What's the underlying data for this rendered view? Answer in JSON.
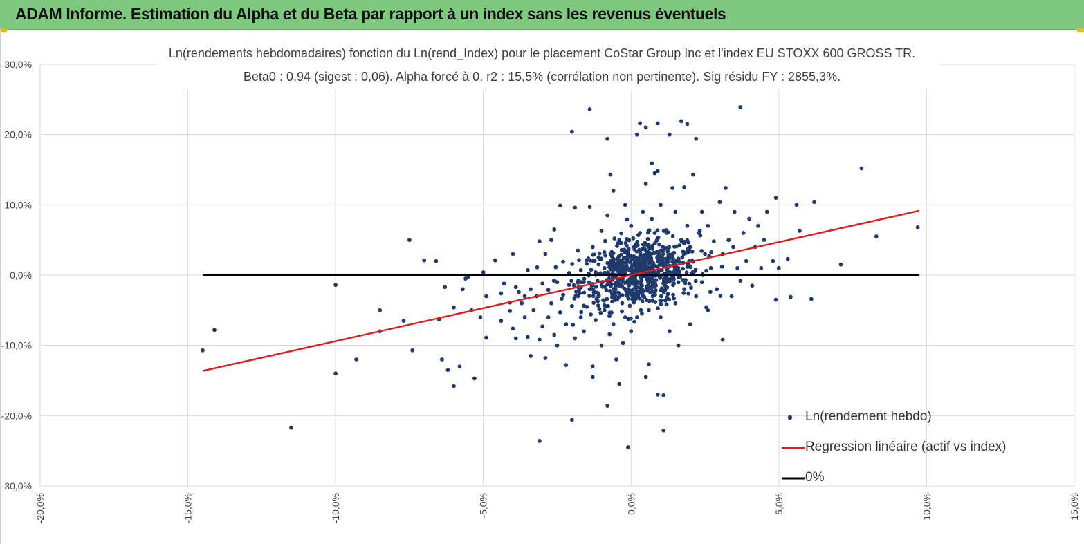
{
  "header": {
    "title": "ADAM Informe. Estimation du Alpha et du Beta par rapport à un index sans les revenus éventuels"
  },
  "colors": {
    "banner": "#7fc97f",
    "points": "#1f3a6b",
    "regression": "#e31a1c",
    "zero_line": "#000000",
    "grid": "#d9d9d9"
  },
  "chart_data": {
    "type": "scatter",
    "title_line1": "Ln(rendements hebdomadaires) fonction du Ln(rend_Index) pour le placement CoStar Group Inc et l'index EU STOXX 600 GROSS TR.",
    "title_line2": "Beta0 : 0,94 (sigest : 0,06).  Alpha forcé à 0. r2 : 15,5% (corrélation non pertinente). Sig résidu FY : 2855,3%.",
    "xlim": [
      -0.2,
      0.15
    ],
    "ylim": [
      -0.3,
      0.3
    ],
    "x_ticks": [
      "-20,0%",
      "-15,0%",
      "-10,0%",
      "-5,0%",
      "0,0%",
      "5,0%",
      "10,0%",
      "15,0%"
    ],
    "y_ticks": [
      "30,0%",
      "20,0%",
      "10,0%",
      "0,0%",
      "-10,0%",
      "-20,0%",
      "-30,0%"
    ],
    "grid": true,
    "legend_placement": "bottom-right",
    "legend": [
      {
        "label": "Ln(rendement hebdo)",
        "kind": "marker"
      },
      {
        "label": "Regression linéaire (actif vs index)",
        "kind": "line"
      },
      {
        "label": "0%",
        "kind": "line"
      }
    ],
    "series": [
      {
        "name": "Ln(rendement hebdo)",
        "points": [
          [
            -0.145,
            -0.107
          ],
          [
            -0.141,
            -0.078
          ],
          [
            -0.115,
            -0.217
          ],
          [
            -0.1,
            -0.014
          ],
          [
            -0.1,
            -0.14
          ],
          [
            -0.093,
            -0.12
          ],
          [
            -0.085,
            -0.05
          ],
          [
            -0.085,
            -0.08
          ],
          [
            -0.075,
            0.05
          ],
          [
            -0.077,
            -0.065
          ],
          [
            -0.074,
            -0.107
          ],
          [
            -0.07,
            0.021
          ],
          [
            -0.066,
            0.02
          ],
          [
            -0.065,
            -0.063
          ],
          [
            -0.064,
            -0.12
          ],
          [
            -0.063,
            -0.017
          ],
          [
            -0.062,
            -0.135
          ],
          [
            -0.06,
            -0.158
          ],
          [
            -0.06,
            -0.046
          ],
          [
            -0.058,
            -0.13
          ],
          [
            -0.057,
            -0.02
          ],
          [
            -0.056,
            -0.005
          ],
          [
            -0.055,
            -0.002
          ],
          [
            -0.054,
            -0.05
          ],
          [
            -0.053,
            -0.147
          ],
          [
            -0.051,
            -0.06
          ],
          [
            -0.05,
            0.004
          ],
          [
            -0.049,
            -0.03
          ],
          [
            -0.049,
            -0.089
          ],
          [
            -0.046,
            0.021
          ],
          [
            -0.044,
            -0.026
          ],
          [
            -0.044,
            -0.065
          ],
          [
            -0.043,
            -0.012
          ],
          [
            -0.041,
            -0.039
          ],
          [
            -0.041,
            -0.051
          ],
          [
            -0.04,
            -0.076
          ],
          [
            -0.04,
            0.03
          ],
          [
            -0.039,
            -0.09
          ],
          [
            -0.039,
            -0.017
          ],
          [
            -0.038,
            -0.024
          ],
          [
            -0.037,
            -0.04
          ],
          [
            -0.036,
            -0.03
          ],
          [
            -0.036,
            -0.06
          ],
          [
            -0.035,
            -0.088
          ],
          [
            -0.035,
            0.007
          ],
          [
            -0.034,
            -0.02
          ],
          [
            -0.034,
            -0.115
          ],
          [
            -0.033,
            -0.05
          ],
          [
            -0.032,
            -0.03
          ],
          [
            -0.031,
            -0.092
          ],
          [
            -0.031,
            -0.236
          ],
          [
            -0.031,
            0.048
          ],
          [
            -0.03,
            -0.012
          ],
          [
            -0.03,
            -0.073
          ],
          [
            -0.029,
            0.03
          ],
          [
            -0.029,
            -0.118
          ],
          [
            -0.028,
            -0.06
          ],
          [
            -0.028,
            -0.021
          ],
          [
            -0.027,
            0.05
          ],
          [
            -0.027,
            -0.04
          ],
          [
            -0.026,
            -0.085
          ],
          [
            -0.026,
            0.065
          ],
          [
            -0.025,
            -0.01
          ],
          [
            -0.025,
            -0.1
          ],
          [
            -0.024,
            -0.053
          ],
          [
            -0.024,
            0.099
          ],
          [
            -0.023,
            0.019
          ],
          [
            -0.023,
            -0.028
          ],
          [
            -0.022,
            -0.128
          ],
          [
            -0.022,
            -0.07
          ],
          [
            -0.021,
            -0.014
          ],
          [
            -0.021,
            0.003
          ],
          [
            -0.02,
            -0.044
          ],
          [
            -0.02,
            -0.206
          ],
          [
            -0.02,
            0.204
          ],
          [
            -0.019,
            0.096
          ],
          [
            -0.019,
            -0.09
          ],
          [
            -0.018,
            -0.03
          ],
          [
            -0.018,
            0.035
          ],
          [
            -0.017,
            -0.06
          ],
          [
            -0.017,
            0.007
          ],
          [
            -0.016,
            -0.01
          ],
          [
            -0.016,
            -0.08
          ],
          [
            -0.015,
            0.016
          ],
          [
            -0.015,
            -0.045
          ],
          [
            -0.014,
            0.236
          ],
          [
            -0.014,
            0.097
          ],
          [
            -0.014,
            -0.02
          ],
          [
            -0.013,
            -0.13
          ],
          [
            -0.013,
            0.04
          ],
          [
            -0.013,
            -0.145
          ],
          [
            -0.012,
            -0.064
          ],
          [
            -0.012,
            0.004
          ],
          [
            -0.011,
            0.025
          ],
          [
            -0.011,
            -0.03
          ],
          [
            -0.01,
            0.063
          ],
          [
            -0.01,
            -0.1
          ],
          [
            -0.01,
            -0.014
          ],
          [
            -0.009,
            0.01
          ],
          [
            -0.009,
            -0.05
          ],
          [
            -0.008,
            -0.186
          ],
          [
            -0.008,
            0.085
          ],
          [
            -0.008,
            0.194
          ],
          [
            -0.007,
            -0.008
          ],
          [
            -0.007,
            0.143
          ],
          [
            -0.007,
            0.03
          ],
          [
            -0.006,
            -0.03
          ],
          [
            -0.006,
            0.12
          ],
          [
            -0.006,
            -0.07
          ],
          [
            -0.005,
            0.008
          ],
          [
            -0.005,
            -0.12
          ],
          [
            -0.004,
            0.05
          ],
          [
            -0.004,
            -0.015
          ],
          [
            -0.004,
            -0.155
          ],
          [
            -0.003,
            0.02
          ],
          [
            -0.003,
            -0.04
          ],
          [
            -0.002,
            0.1
          ],
          [
            -0.002,
            -0.06
          ],
          [
            -0.002,
            0.002
          ],
          [
            -0.001,
            -0.245
          ],
          [
            -0.001,
            0.03
          ],
          [
            -0.001,
            -0.02
          ],
          [
            0.0,
            0.01
          ],
          [
            0.0,
            -0.08
          ],
          [
            0.0,
            0.07
          ],
          [
            0.001,
            -0.005
          ],
          [
            0.001,
            0.04
          ],
          [
            0.001,
            -0.035
          ],
          [
            0.002,
            0.2
          ],
          [
            0.002,
            0.015
          ],
          [
            0.002,
            -0.06
          ],
          [
            0.003,
            0.06
          ],
          [
            0.003,
            -0.01
          ],
          [
            0.003,
            0.216
          ],
          [
            0.004,
            0.09
          ],
          [
            0.004,
            -0.03
          ],
          [
            0.004,
            0.02
          ],
          [
            0.005,
            -0.145
          ],
          [
            0.005,
            0.21
          ],
          [
            0.005,
            0.13
          ],
          [
            0.006,
            -0.127
          ],
          [
            0.006,
            0.04
          ],
          [
            0.006,
            -0.05
          ],
          [
            0.007,
            0.159
          ],
          [
            0.007,
            0.005
          ],
          [
            0.007,
            0.08
          ],
          [
            0.008,
            -0.025
          ],
          [
            0.008,
            0.145
          ],
          [
            0.008,
            0.06
          ],
          [
            0.009,
            -0.17
          ],
          [
            0.009,
            0.216
          ],
          [
            0.009,
            0.148
          ],
          [
            0.01,
            0.02
          ],
          [
            0.01,
            -0.06
          ],
          [
            0.01,
            0.1
          ],
          [
            0.011,
            -0.171
          ],
          [
            0.011,
            0.035
          ],
          [
            0.011,
            -0.221
          ],
          [
            0.012,
            -0.01
          ],
          [
            0.012,
            0.06
          ],
          [
            0.013,
            -0.08
          ],
          [
            0.013,
            0.2
          ],
          [
            0.014,
            0.03
          ],
          [
            0.014,
            0.124
          ],
          [
            0.015,
            -0.04
          ],
          [
            0.015,
            0.09
          ],
          [
            0.016,
            0.01
          ],
          [
            0.016,
            -0.1
          ],
          [
            0.017,
            0.05
          ],
          [
            0.017,
            0.219
          ],
          [
            0.018,
            -0.02
          ],
          [
            0.018,
            0.125
          ],
          [
            0.019,
            0.07
          ],
          [
            0.019,
            0.215
          ],
          [
            0.02,
            -0.07
          ],
          [
            0.02,
            0.04
          ],
          [
            0.021,
            0.143
          ],
          [
            0.021,
            0.005
          ],
          [
            0.022,
            0.194
          ],
          [
            0.022,
            -0.03
          ],
          [
            0.023,
            0.06
          ],
          [
            0.024,
            -0.01
          ],
          [
            0.024,
            0.09
          ],
          [
            0.025,
            0.03
          ],
          [
            0.026,
            -0.05
          ],
          [
            0.026,
            0.07
          ],
          [
            0.027,
            0.01
          ],
          [
            0.028,
            0.048
          ],
          [
            0.029,
            -0.02
          ],
          [
            0.03,
            0.104
          ],
          [
            0.031,
            -0.092
          ],
          [
            0.031,
            0.03
          ],
          [
            0.032,
            0.124
          ],
          [
            0.033,
            0.05
          ],
          [
            0.034,
            -0.03
          ],
          [
            0.035,
            0.09
          ],
          [
            0.036,
            0.01
          ],
          [
            0.037,
            0.239
          ],
          [
            0.037,
            -0.008
          ],
          [
            0.038,
            0.06
          ],
          [
            0.039,
            0.02
          ],
          [
            0.04,
            0.08
          ],
          [
            0.041,
            -0.015
          ],
          [
            0.042,
            0.04
          ],
          [
            0.043,
            0.07
          ],
          [
            0.044,
            0.01
          ],
          [
            0.045,
            0.05
          ],
          [
            0.046,
            0.09
          ],
          [
            0.048,
            0.02
          ],
          [
            0.049,
            -0.035
          ],
          [
            0.049,
            0.11
          ],
          [
            0.05,
            0.01
          ],
          [
            0.053,
            0.023
          ],
          [
            0.054,
            -0.031
          ],
          [
            0.056,
            0.1
          ],
          [
            0.057,
            0.063
          ],
          [
            0.061,
            -0.034
          ],
          [
            0.062,
            0.104
          ],
          [
            0.071,
            0.015
          ],
          [
            0.078,
            0.152
          ],
          [
            0.083,
            0.055
          ],
          [
            0.097,
            0.068
          ]
        ],
        "dense_cluster": {
          "x_mean": 0.003,
          "y_mean": 0.003,
          "x_sd": 0.01,
          "y_sd": 0.024,
          "count": 700
        }
      },
      {
        "name": "Regression linéaire (actif vs index)",
        "slope": 0.94,
        "x_range": [
          -0.145,
          0.0975
        ]
      },
      {
        "name": "0%",
        "y": 0.0,
        "x_range": [
          -0.145,
          0.0975
        ]
      }
    ]
  }
}
